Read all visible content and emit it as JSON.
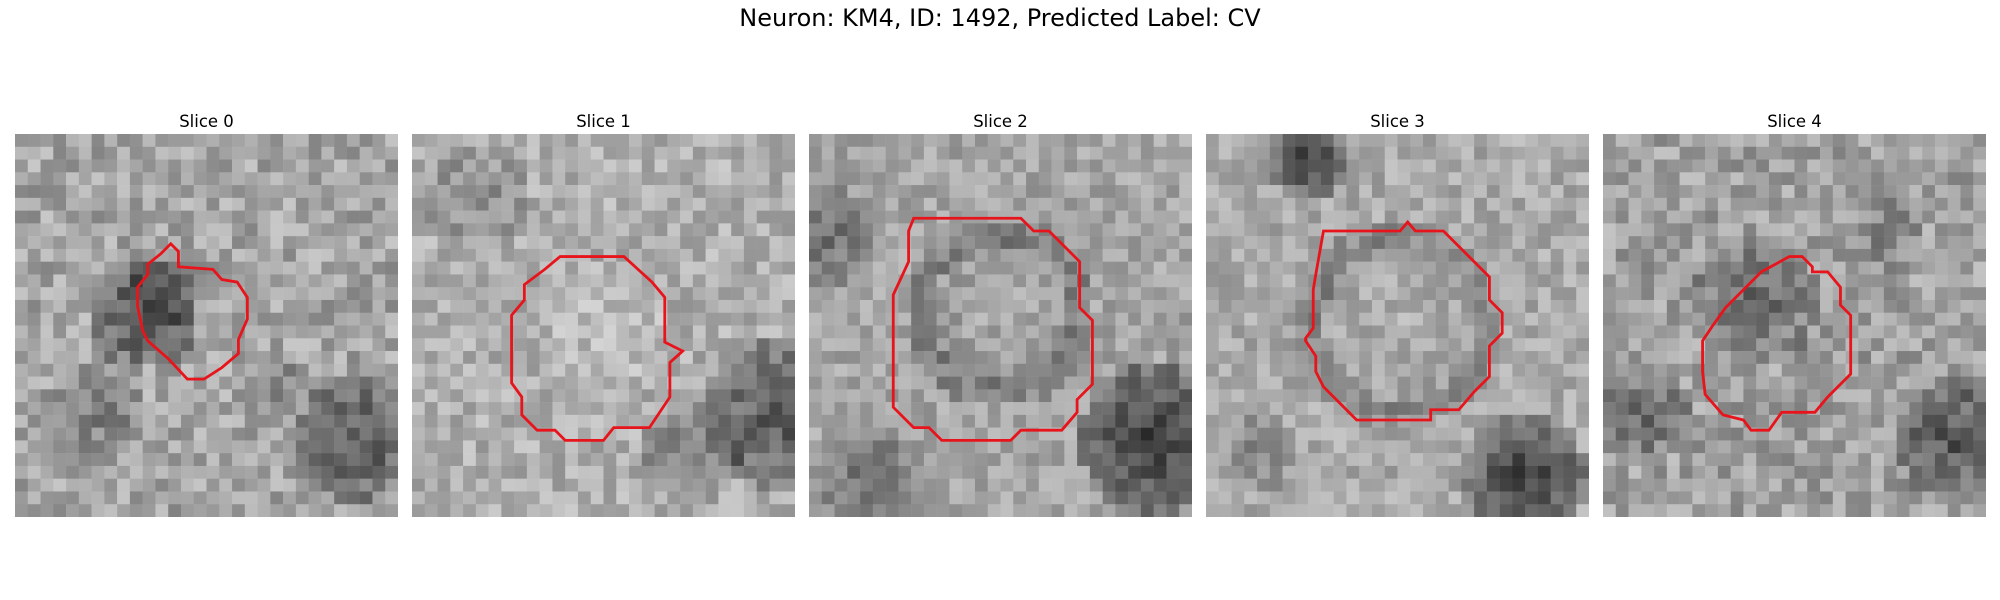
{
  "figure": {
    "title": "Neuron: KM4, ID: 1492, Predicted Label: CV"
  },
  "panels": [
    {
      "title": "Slice 0",
      "icon": "grayscale-microscopy-image",
      "contour_color": "#e8141b"
    },
    {
      "title": "Slice 1",
      "icon": "grayscale-microscopy-image",
      "contour_color": "#e8141b"
    },
    {
      "title": "Slice 2",
      "icon": "grayscale-microscopy-image",
      "contour_color": "#e8141b"
    },
    {
      "title": "Slice 3",
      "icon": "grayscale-microscopy-image",
      "contour_color": "#e8141b"
    },
    {
      "title": "Slice 4",
      "icon": "grayscale-microscopy-image",
      "contour_color": "#e8141b"
    }
  ]
}
